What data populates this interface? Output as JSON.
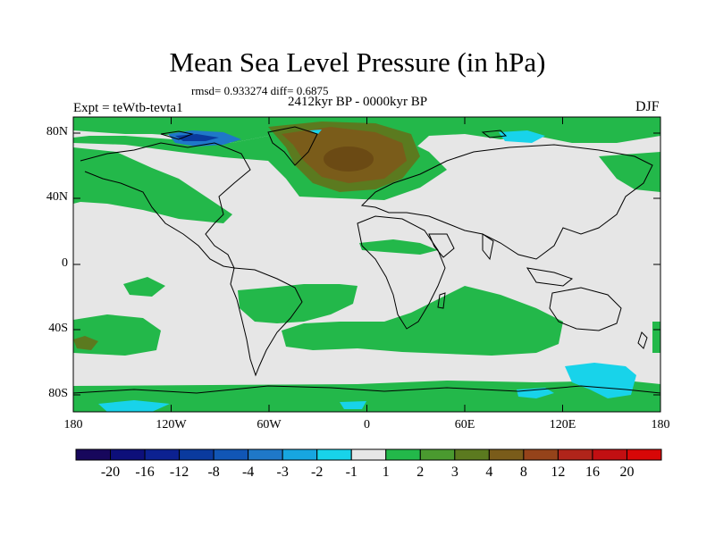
{
  "title": "Mean Sea Level Pressure (in hPa)",
  "stats": "rmsd= 0.933274 diff= 0.6875",
  "period": "2412kyr BP - 0000kyr BP",
  "experiment": "Expt = teWtb-tevta1",
  "season": "DJF",
  "lat_ticks": [
    "80N",
    "40N",
    "0",
    "40S",
    "80S"
  ],
  "lon_ticks": [
    "180",
    "120W",
    "60W",
    "0",
    "60E",
    "120E",
    "180"
  ],
  "colorbar": {
    "labels": [
      "-20",
      "-16",
      "-12",
      "-8",
      "-4",
      "-3",
      "-2",
      "-1",
      "1",
      "2",
      "3",
      "4",
      "8",
      "12",
      "16",
      "20"
    ],
    "colors": [
      "#17075c",
      "#0d0f7a",
      "#0c2191",
      "#0a3a9e",
      "#1156b5",
      "#1f78c8",
      "#17a6e0",
      "#18d3ea",
      "#e6e6e6",
      "#23b84a",
      "#4a9a2f",
      "#5b7a1f",
      "#7a5c1a",
      "#95431a",
      "#b0241a",
      "#c20f12",
      "#d70707"
    ]
  }
}
